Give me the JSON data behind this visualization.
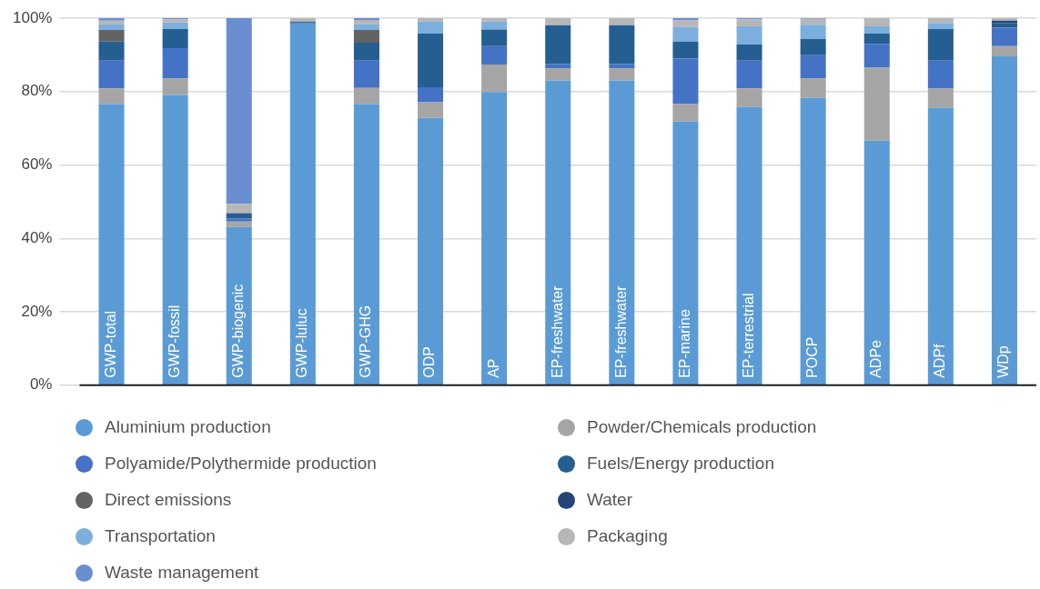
{
  "chart_data": {
    "type": "bar",
    "stacked": true,
    "categories": [
      "GWP-total",
      "GWP-fossil",
      "GWP-biogenic",
      "GWP-luluc",
      "GWP-GHG",
      "ODP",
      "AP",
      "EP-freshwater",
      "EP-freshwater",
      "EP-marine",
      "EP-terrestrial",
      "POCP",
      "ADPe",
      "ADPf",
      "WDp"
    ],
    "series": [
      {
        "name": "Aluminium production",
        "color": "#5b9bd5",
        "values": [
          76.6,
          79.1,
          43.1,
          98.6,
          76.6,
          72.8,
          79.9,
          83.0,
          83.0,
          71.8,
          75.8,
          78.3,
          66.6,
          75.6,
          89.6
        ]
      },
      {
        "name": "Powder/Chemicals production",
        "color": "#a5a5a5",
        "values": [
          4.3,
          4.5,
          1.5,
          0,
          4.4,
          4.3,
          7.5,
          3.3,
          3.3,
          4.8,
          5.1,
          5.3,
          19.9,
          5.2,
          2.8
        ]
      },
      {
        "name": "Polyamide/Polythermide production",
        "color": "#4472c4",
        "values": [
          7.5,
          8.2,
          0.8,
          0,
          7.4,
          4.1,
          5.0,
          1.2,
          1.2,
          12.4,
          7.5,
          6.3,
          6.5,
          7.6,
          5.0
        ]
      },
      {
        "name": "Fuels/Energy production",
        "color": "#255e91",
        "values": [
          5.2,
          5.2,
          1.5,
          0.2,
          4.9,
          14.6,
          4.5,
          10.6,
          10.6,
          4.6,
          4.4,
          4.4,
          2.8,
          8.6,
          1.3
        ]
      },
      {
        "name": "Direct emissions",
        "color": "#636363",
        "values": [
          3.2,
          0,
          0,
          0,
          3.5,
          0,
          0,
          0,
          0,
          0,
          0,
          0,
          0,
          0,
          0
        ]
      },
      {
        "name": "Water",
        "color": "#264478",
        "values": [
          0,
          0,
          0,
          0.3,
          0,
          0,
          0,
          0,
          0,
          0,
          0,
          0,
          0,
          0,
          0.6
        ]
      },
      {
        "name": "Transportation",
        "color": "#7cafdd",
        "values": [
          1.5,
          1.8,
          0,
          0,
          1.5,
          3.3,
          2.2,
          0,
          0,
          4.0,
          5.0,
          3.9,
          2.0,
          1.7,
          0
        ]
      },
      {
        "name": "Packaging",
        "color": "#b7b7b7",
        "values": [
          1.0,
          0.9,
          2.5,
          0.9,
          1.2,
          0.9,
          0.9,
          1.9,
          1.9,
          1.8,
          1.9,
          1.6,
          2.2,
          1.3,
          0.7
        ]
      },
      {
        "name": "Waste management",
        "color": "#698ed0",
        "values": [
          0.7,
          0.3,
          50.6,
          0,
          0.5,
          0,
          0,
          0,
          0,
          0.6,
          0.3,
          0.2,
          0,
          0,
          0
        ]
      }
    ],
    "ylim": [
      0,
      100
    ],
    "yticks": [
      {
        "value": 0,
        "label": "0%"
      },
      {
        "value": 20,
        "label": "20%"
      },
      {
        "value": 40,
        "label": "40%"
      },
      {
        "value": 60,
        "label": "60%"
      },
      {
        "value": 80,
        "label": "80%"
      },
      {
        "value": 100,
        "label": "100%"
      }
    ],
    "grid": "y",
    "legend": "bottom"
  }
}
